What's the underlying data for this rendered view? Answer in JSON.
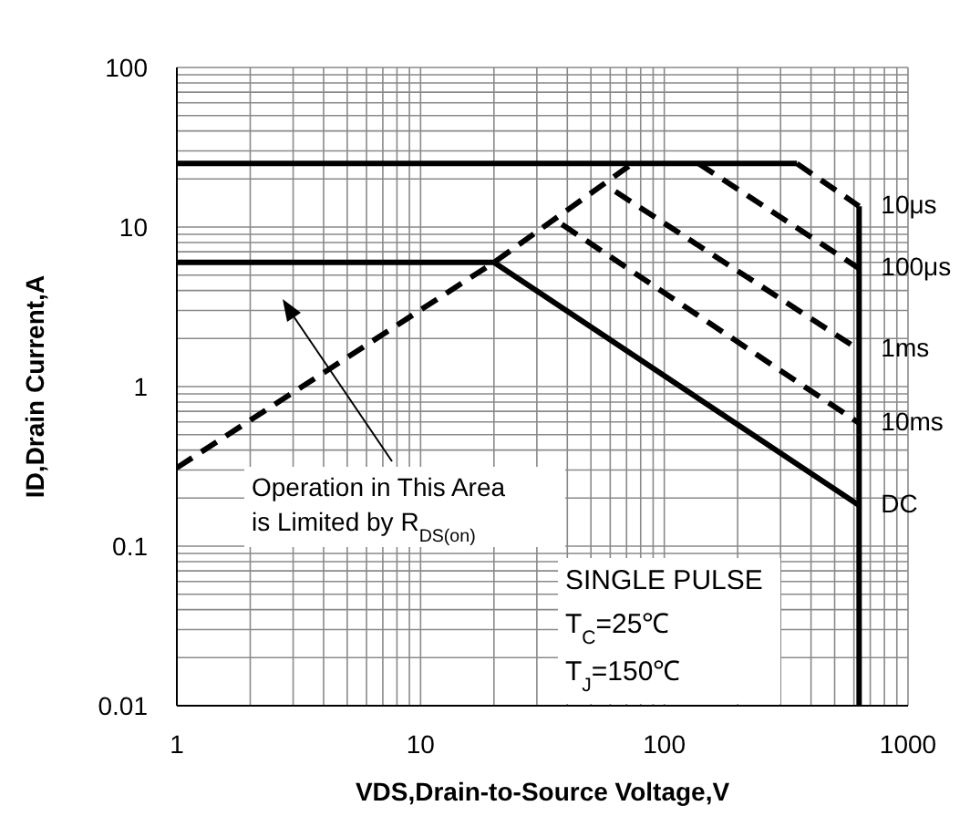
{
  "chart_data": {
    "type": "line",
    "xlabel": "VDS,Drain-to-Source  Voltage,V",
    "ylabel": "ID,Drain Current,A",
    "log": "xy",
    "xlim": [
      1,
      1000
    ],
    "ylim": [
      0.01,
      100
    ],
    "xticks": [
      1,
      {
        "value": 2,
        "label": null
      },
      {
        "value": 3,
        "label": null
      },
      {
        "value": 4,
        "label": null
      },
      {
        "value": 5,
        "label": null
      },
      {
        "value": 6,
        "label": null
      },
      {
        "value": 7,
        "label": null
      },
      {
        "value": 8,
        "label": null
      },
      {
        "value": 9,
        "label": null
      },
      10,
      {
        "value": 20,
        "label": null
      },
      {
        "value": 30,
        "label": null
      },
      {
        "value": 40,
        "label": null
      },
      {
        "value": 50,
        "label": null
      },
      {
        "value": 60,
        "label": null
      },
      {
        "value": 70,
        "label": null
      },
      {
        "value": 80,
        "label": null
      },
      {
        "value": 90,
        "label": null
      },
      100,
      {
        "value": 200,
        "label": null
      },
      {
        "value": 300,
        "label": null
      },
      {
        "value": 400,
        "label": null
      },
      {
        "value": 500,
        "label": null
      },
      {
        "value": 600,
        "label": null
      },
      {
        "value": 700,
        "label": null
      },
      {
        "value": 800,
        "label": null
      },
      {
        "value": 900,
        "label": null
      },
      1000
    ],
    "yticks": [
      0.01,
      {
        "value": 0.02,
        "label": null
      },
      {
        "value": 0.03,
        "label": null
      },
      {
        "value": 0.04,
        "label": null
      },
      {
        "value": 0.05,
        "label": null
      },
      {
        "value": 0.06,
        "label": null
      },
      {
        "value": 0.07,
        "label": null
      },
      {
        "value": 0.08,
        "label": null
      },
      {
        "value": 0.09,
        "label": null
      },
      0.1,
      {
        "value": 0.2,
        "label": null
      },
      {
        "value": 0.3,
        "label": null
      },
      {
        "value": 0.4,
        "label": null
      },
      {
        "value": 0.5,
        "label": null
      },
      {
        "value": 0.6,
        "label": null
      },
      {
        "value": 0.7,
        "label": null
      },
      {
        "value": 0.8,
        "label": null
      },
      {
        "value": 0.9,
        "label": null
      },
      1,
      {
        "value": 2,
        "label": null
      },
      {
        "value": 3,
        "label": null
      },
      {
        "value": 4,
        "label": null
      },
      {
        "value": 5,
        "label": null
      },
      {
        "value": 6,
        "label": null
      },
      {
        "value": 7,
        "label": null
      },
      {
        "value": 8,
        "label": null
      },
      {
        "value": 9,
        "label": null
      },
      10,
      {
        "value": 20,
        "label": null
      },
      {
        "value": 30,
        "label": null
      },
      {
        "value": 40,
        "label": null
      },
      {
        "value": 50,
        "label": null
      },
      {
        "value": 60,
        "label": null
      },
      {
        "value": 70,
        "label": null
      },
      {
        "value": 80,
        "label": null
      },
      {
        "value": 90,
        "label": null
      },
      100
    ],
    "grid": true,
    "legend": false,
    "marker": "none",
    "series": [
      {
        "color": "#000000",
        "line_style": "dashed",
        "x": [
          1,
          20,
          74
        ],
        "values": [
          0.31,
          6,
          25
        ]
      },
      {
        "color": "#000000",
        "line_style": "solid",
        "x": [
          1,
          350
        ],
        "values": [
          25,
          25
        ]
      },
      {
        "name": "10μs",
        "color": "#000000",
        "line_style": "dashed",
        "x": [
          350,
          630
        ],
        "values": [
          25,
          13.5
        ]
      },
      {
        "name": "100μs",
        "color": "#000000",
        "line_style": "dashed",
        "x": [
          138,
          630
        ],
        "values": [
          25,
          5.5
        ]
      },
      {
        "name": "1ms",
        "color": "#000000",
        "line_style": "dashed",
        "x": [
          63,
          630
        ],
        "values": [
          16.7,
          1.7
        ]
      },
      {
        "name": "10ms",
        "color": "#000000",
        "line_style": "dashed",
        "x": [
          38,
          630
        ],
        "values": [
          10.4,
          0.59
        ]
      },
      {
        "name": "DC",
        "color": "#000000",
        "line_style": "solid",
        "x": [
          1,
          20,
          630
        ],
        "values": [
          6,
          6,
          0.18
        ]
      },
      {
        "color": "#000000",
        "line_style": "solid",
        "x": [
          630,
          630
        ],
        "values": [
          13.5,
          0.01
        ]
      }
    ],
    "annotations": [
      "Operation in This Area\nis Limited by R$_{DS(on)}$",
      "SINGLE PULSE",
      "T$_{C}$=25℃",
      "T$_{J}$=150℃"
    ]
  }
}
